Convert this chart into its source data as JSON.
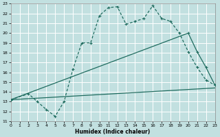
{
  "xlabel": "Humidex (Indice chaleur)",
  "bg_color": "#c2e0e0",
  "grid_color": "#ffffff",
  "line_color": "#1e6b5e",
  "xlim": [
    0,
    23
  ],
  "ylim": [
    11,
    23
  ],
  "xticks": [
    0,
    1,
    2,
    3,
    4,
    5,
    6,
    7,
    8,
    9,
    10,
    11,
    12,
    13,
    14,
    15,
    16,
    17,
    18,
    19,
    20,
    21,
    22,
    23
  ],
  "yticks": [
    11,
    12,
    13,
    14,
    15,
    16,
    17,
    18,
    19,
    20,
    21,
    22,
    23
  ],
  "line1_x": [
    0,
    2,
    3,
    4,
    5,
    6,
    7,
    8,
    9,
    10,
    11,
    12,
    13,
    14,
    15,
    16,
    17,
    18,
    19,
    20,
    21,
    22,
    23
  ],
  "line1_y": [
    13.2,
    13.8,
    13.0,
    12.2,
    11.5,
    13.0,
    16.3,
    19.0,
    19.0,
    21.8,
    22.6,
    22.7,
    20.9,
    21.2,
    21.5,
    22.8,
    21.5,
    21.2,
    20.0,
    18.1,
    16.5,
    15.2,
    14.7
  ],
  "line2_x": [
    0,
    20,
    21,
    22,
    23
  ],
  "line2_y": [
    13.2,
    20.0,
    18.1,
    16.5,
    14.7
  ],
  "line3_x": [
    0,
    23
  ],
  "line3_y": [
    13.2,
    14.4
  ]
}
